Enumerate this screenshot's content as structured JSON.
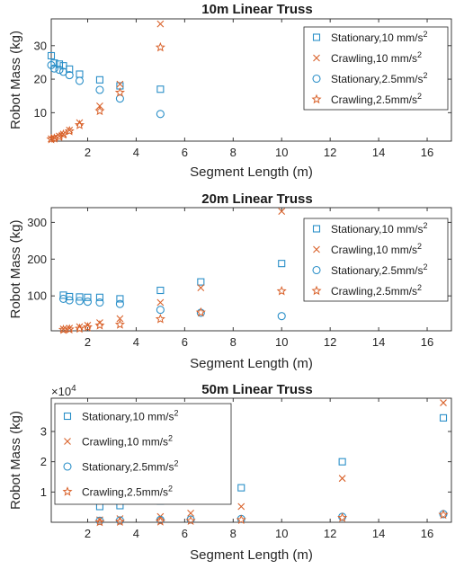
{
  "colors": {
    "stationary": "#2a8fc8",
    "crawling": "#d9622b",
    "axis": "#262626",
    "grid": "#ffffff"
  },
  "chart_data": [
    {
      "type": "scatter",
      "title": "10m Linear Truss",
      "xlabel": "Segment Length (m)",
      "ylabel": "Robot Mass (kg)",
      "xlim": [
        0.5,
        17
      ],
      "ylim": [
        1.5,
        38
      ],
      "xticks": [
        "2",
        "4",
        "6",
        "8",
        "10",
        "12",
        "14",
        "16"
      ],
      "yticks": [
        "10",
        "20",
        "30"
      ],
      "legend_position": "top-right",
      "series": [
        {
          "name": "Stationary,10 mm/s^2",
          "marker": "square",
          "x": [
            0.5,
            0.625,
            0.833,
            1.0,
            1.25,
            1.667,
            2.5,
            3.333,
            5.0
          ],
          "y": [
            27,
            24.8,
            24.5,
            24,
            23,
            21.5,
            19.8,
            18.0,
            17.0
          ]
        },
        {
          "name": "Crawling,10 mm/s^2",
          "marker": "x",
          "x": [
            0.5,
            0.625,
            0.833,
            1.0,
            1.25,
            1.667,
            2.5,
            3.333,
            5.0
          ],
          "y": [
            2.2,
            2.5,
            3.0,
            3.6,
            4.8,
            7.0,
            12.0,
            18.5,
            36.5
          ]
        },
        {
          "name": "Stationary,2.5mm/s^2",
          "marker": "circle",
          "x": [
            0.5,
            0.625,
            0.833,
            1.0,
            1.25,
            1.667,
            2.5,
            3.333,
            5.0
          ],
          "y": [
            24.2,
            23.2,
            22.8,
            22.2,
            21.2,
            19.5,
            16.8,
            14.2,
            9.6
          ]
        },
        {
          "name": "Crawling,2.5mm/s^2",
          "marker": "star",
          "x": [
            0.5,
            0.625,
            0.833,
            1.0,
            1.25,
            1.667,
            2.5,
            3.333,
            5.0
          ],
          "y": [
            2.1,
            2.3,
            2.8,
            3.5,
            4.5,
            6.3,
            10.5,
            16.0,
            29.5
          ]
        }
      ]
    },
    {
      "type": "scatter",
      "title": "20m Linear Truss",
      "xlabel": "Segment Length (m)",
      "ylabel": "Robot Mass (kg)",
      "xlim": [
        0.5,
        17
      ],
      "ylim": [
        5,
        340
      ],
      "xticks": [
        "2",
        "4",
        "6",
        "8",
        "10",
        "12",
        "14",
        "16"
      ],
      "yticks": [
        "100",
        "200",
        "300"
      ],
      "legend_position": "top-right",
      "series": [
        {
          "name": "Stationary,10 mm/s^2",
          "marker": "square",
          "x": [
            1.0,
            1.25,
            1.667,
            2.0,
            2.5,
            3.333,
            5.0,
            6.667,
            10.0
          ],
          "y": [
            102,
            98,
            97,
            96,
            96,
            92,
            115,
            138,
            188
          ]
        },
        {
          "name": "Crawling,10 mm/s^2",
          "marker": "x",
          "x": [
            1.0,
            1.25,
            1.667,
            2.0,
            2.5,
            3.333,
            5.0,
            6.667,
            10.0
          ],
          "y": [
            10,
            12,
            16,
            20,
            27,
            38,
            82,
            122,
            330
          ]
        },
        {
          "name": "Stationary,2.5mm/s^2",
          "marker": "circle",
          "x": [
            1.0,
            1.25,
            1.667,
            2.0,
            2.5,
            3.333,
            5.0,
            6.667,
            10.0
          ],
          "y": [
            92,
            88,
            86,
            84,
            82,
            78,
            62,
            54,
            45
          ]
        },
        {
          "name": "Crawling,2.5mm/s^2",
          "marker": "star",
          "x": [
            1.0,
            1.25,
            1.667,
            2.0,
            2.5,
            3.333,
            5.0,
            6.667,
            10.0
          ],
          "y": [
            8,
            9,
            11,
            15,
            20,
            22,
            37,
            55,
            113
          ]
        }
      ]
    },
    {
      "type": "scatter",
      "title": "50m Linear Truss",
      "xlabel": "Segment Length (m)",
      "ylabel": "Robot Mass (kg)",
      "y_multiplier": "×10^4",
      "xlim": [
        0.5,
        17
      ],
      "ylim": [
        0,
        4.1
      ],
      "xticks": [
        "2",
        "4",
        "6",
        "8",
        "10",
        "12",
        "14",
        "16"
      ],
      "yticks": [
        "1",
        "2",
        "3"
      ],
      "legend_position": "top-left",
      "series": [
        {
          "name": "Stationary,10 mm/s^2",
          "marker": "square",
          "x": [
            2.5,
            3.333,
            5.0,
            6.25,
            8.333,
            12.5,
            16.667
          ],
          "y": [
            0.52,
            0.55,
            0.7,
            0.85,
            1.14,
            2.0,
            3.45
          ]
        },
        {
          "name": "Crawling,10 mm/s^2",
          "marker": "x",
          "x": [
            2.5,
            3.333,
            5.0,
            6.25,
            8.333,
            12.5,
            16.667
          ],
          "y": [
            0.08,
            0.12,
            0.19,
            0.3,
            0.52,
            1.45,
            3.95
          ]
        },
        {
          "name": "Stationary,2.5mm/s^2",
          "marker": "circle",
          "x": [
            2.5,
            3.333,
            5.0,
            6.25,
            8.333,
            12.5,
            16.667
          ],
          "y": [
            0.05,
            0.06,
            0.08,
            0.09,
            0.11,
            0.18,
            0.27
          ]
        },
        {
          "name": "Crawling,2.5mm/s^2",
          "marker": "star",
          "x": [
            2.5,
            3.333,
            5.0,
            6.25,
            8.333,
            12.5,
            16.667
          ],
          "y": [
            0.01,
            0.02,
            0.03,
            0.05,
            0.08,
            0.15,
            0.25
          ]
        }
      ]
    }
  ]
}
